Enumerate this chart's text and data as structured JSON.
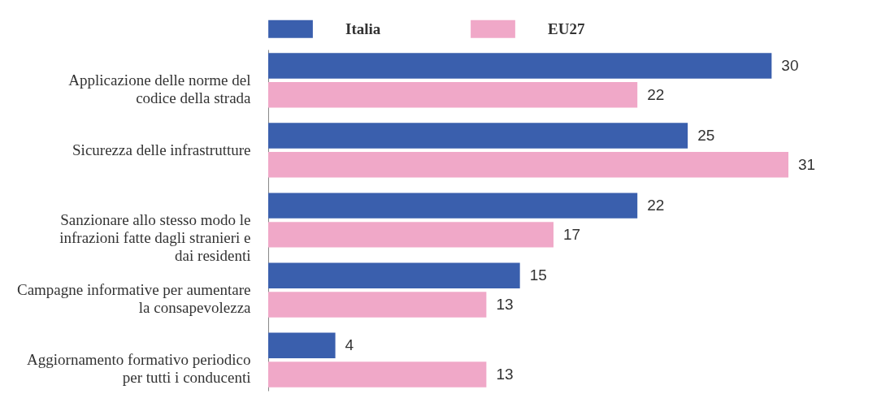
{
  "chart_data": {
    "type": "bar",
    "orientation": "horizontal",
    "categories": [
      "Applicazione delle norme del codice della strada",
      "Sicurezza delle infrastrutture",
      "Sanzionare allo stesso modo le infrazioni fatte dagli stranieri e dai residenti",
      "Campagne informative per aumentare la consapevolezza",
      "Aggiornamento formativo periodico per tutti i conducenti"
    ],
    "series": [
      {
        "name": "Italia",
        "color": "#3a5fad",
        "values": [
          30,
          25,
          22,
          15,
          4
        ]
      },
      {
        "name": "EU27",
        "color": "#f0a8c8",
        "values": [
          22,
          31,
          17,
          13,
          13
        ]
      }
    ],
    "data_labels": true,
    "legend": "top"
  }
}
